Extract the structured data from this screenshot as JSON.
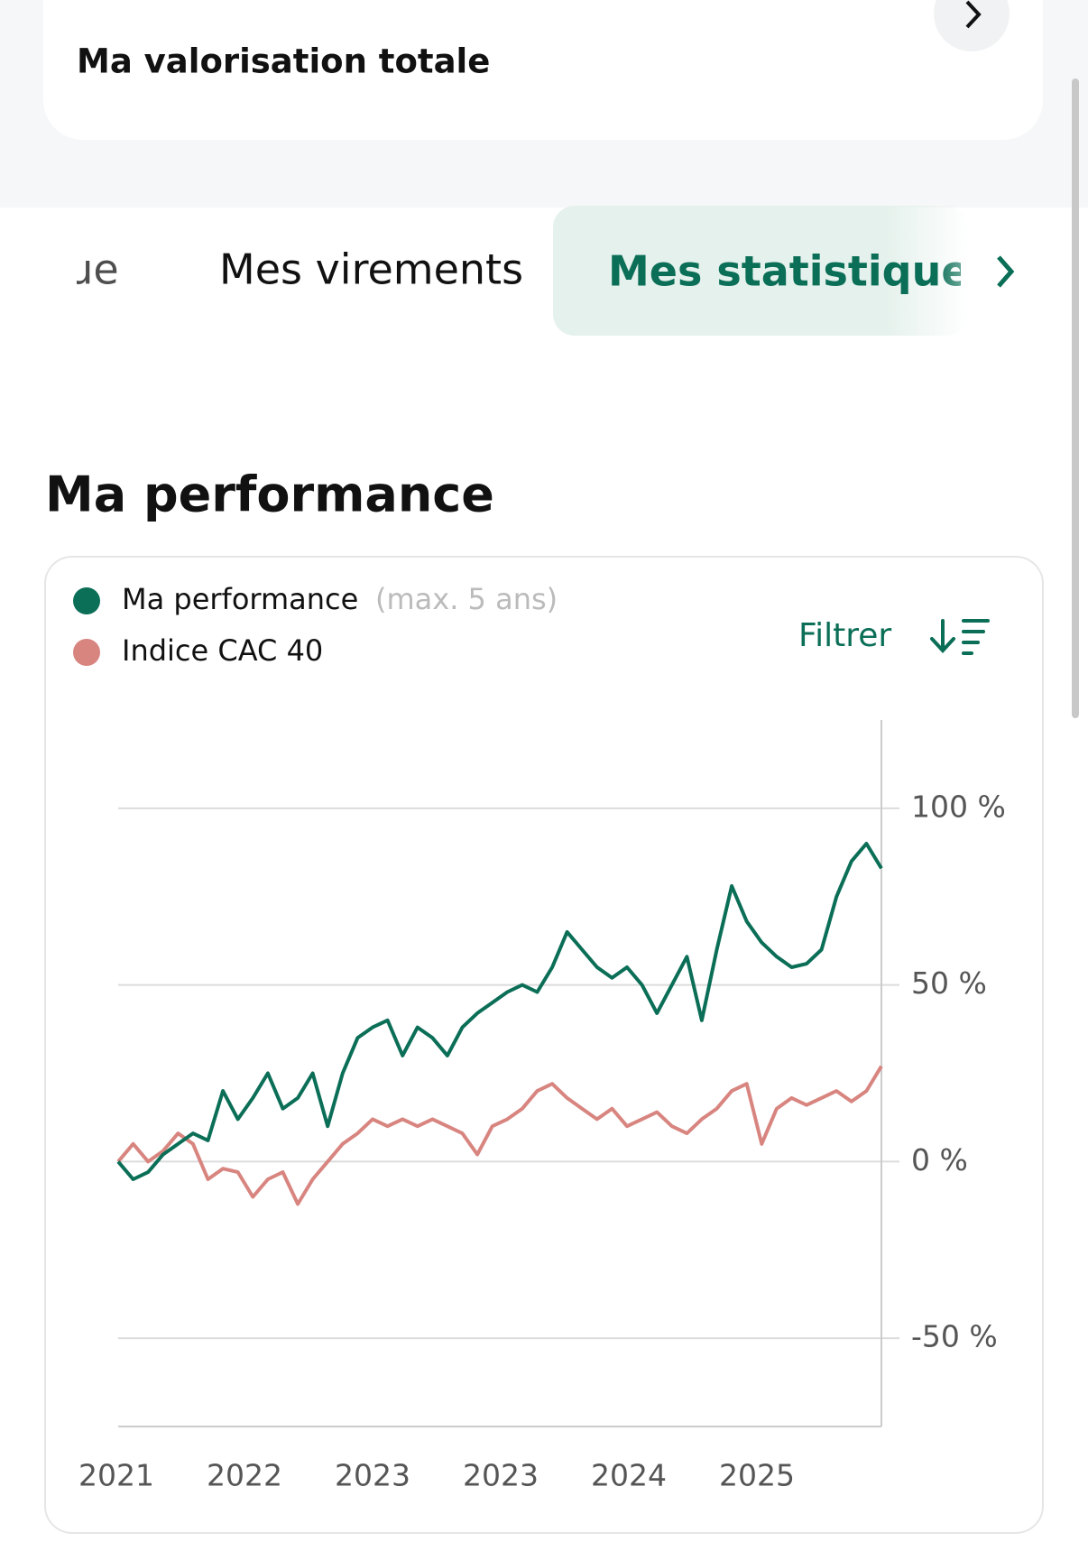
{
  "header": {
    "subtitle": "Ma valorisation totale"
  },
  "tabs": [
    "que",
    "Mes virements",
    "Mes statistiques"
  ],
  "section_title": "Ma performance",
  "filter": "Filtrer",
  "chart_data": {
    "type": "line",
    "legend_note": "(max. 5 ans)",
    "xtick_labels": [
      "2021",
      "2022",
      "2023",
      "2023",
      "2024",
      "2025"
    ],
    "ylim": [
      -75,
      125
    ],
    "yticks": [
      {
        "value": -50,
        "label": "-50 %"
      },
      {
        "value": 0,
        "label": "0 %"
      },
      {
        "value": 50,
        "label": "50 %"
      },
      {
        "value": 100,
        "label": "100 %"
      }
    ],
    "grid": true,
    "series": [
      {
        "name": "Ma performance",
        "color": "#0b6e57",
        "values": [
          0,
          -5,
          -3,
          2,
          5,
          8,
          6,
          20,
          12,
          18,
          25,
          15,
          18,
          25,
          10,
          25,
          35,
          38,
          40,
          30,
          38,
          35,
          30,
          38,
          42,
          45,
          48,
          50,
          48,
          55,
          65,
          60,
          55,
          52,
          55,
          50,
          42,
          50,
          58,
          40,
          60,
          78,
          68,
          62,
          58,
          55,
          56,
          60,
          75,
          85,
          90,
          83
        ]
      },
      {
        "name": "Indice CAC 40",
        "color": "#d88580",
        "values": [
          0,
          5,
          0,
          3,
          8,
          5,
          -5,
          -2,
          -3,
          -10,
          -5,
          -3,
          -12,
          -5,
          0,
          5,
          8,
          12,
          10,
          12,
          10,
          12,
          10,
          8,
          2,
          10,
          12,
          15,
          20,
          22,
          18,
          15,
          12,
          15,
          10,
          12,
          14,
          10,
          8,
          12,
          15,
          20,
          22,
          5,
          15,
          18,
          16,
          18,
          20,
          17,
          20,
          27
        ]
      }
    ]
  }
}
